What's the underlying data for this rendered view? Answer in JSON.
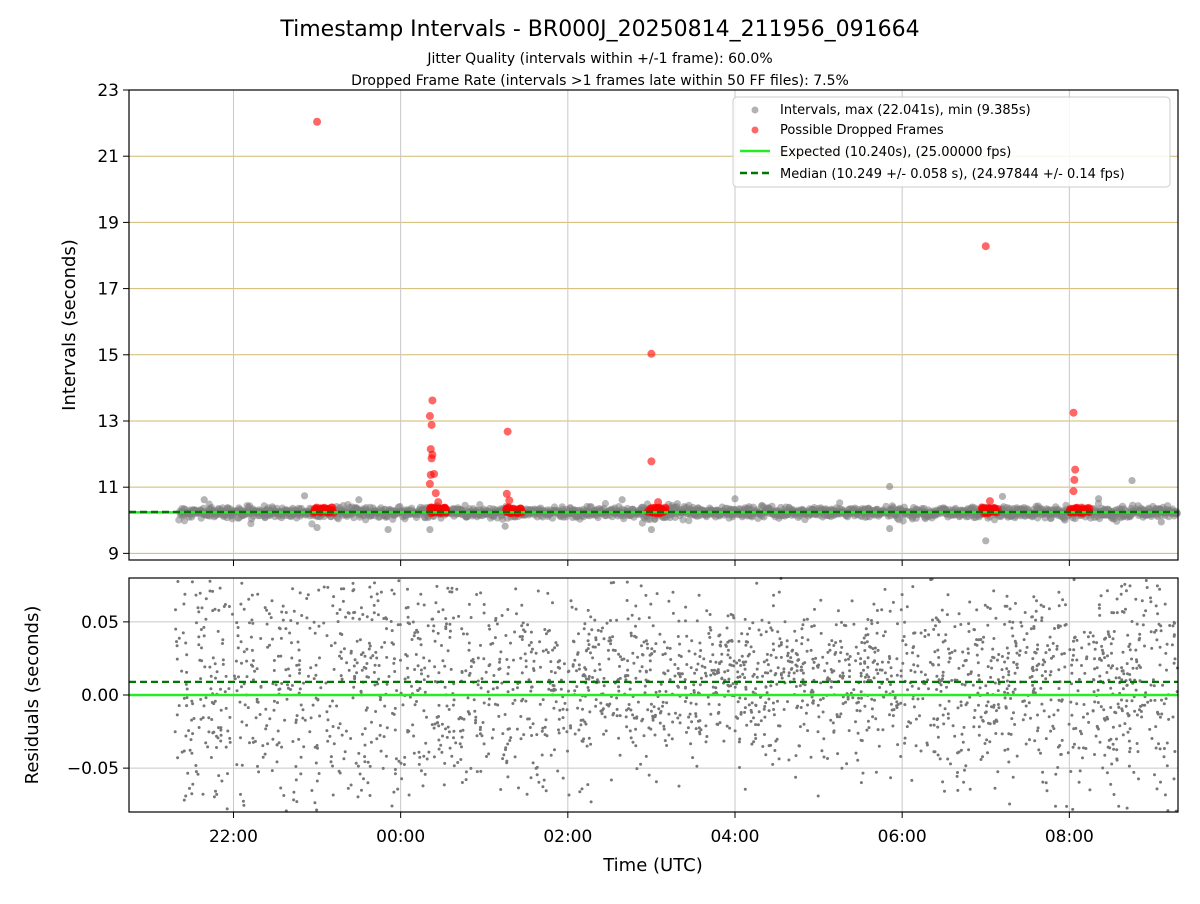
{
  "figure": {
    "title": "Timestamp Intervals - BR000J_20250814_211956_091664",
    "subtitle_1": "Jitter Quality (intervals within +/-1 frame): 60.0%",
    "subtitle_2": "Dropped Frame Rate (intervals >1 frames late within 50 FF files): 7.5%",
    "colors": {
      "intervals": "#808080",
      "dropped": "#ff0000",
      "expected": "#22ee22",
      "median": "#007700",
      "hgrid": "#d2b96e",
      "vgrid": "#c8c8c8"
    }
  },
  "chart_data": [
    {
      "type": "scatter",
      "panel": "top",
      "ylabel": "Intervals (seconds)",
      "xlabel": "",
      "ylim": [
        8.8,
        23.0
      ],
      "yticks": [
        9,
        11,
        13,
        15,
        17,
        19,
        21,
        23
      ],
      "ytick_labels": [
        "9",
        "11",
        "13",
        "15",
        "17",
        "19",
        "21",
        "23"
      ],
      "xticks_hours": [
        22,
        24,
        26,
        28,
        30,
        32
      ],
      "xlim_hours": [
        20.75,
        33.3
      ],
      "grid": true,
      "legend_placement": "top-right",
      "expected_value": 10.24,
      "median_value": 10.249,
      "series": [
        {
          "name": "Intervals, max (22.041s), min (9.385s)",
          "kind": "scatter",
          "color": "#808080",
          "band": {
            "x_start_hour": 21.35,
            "x_end_hour": 33.3,
            "center": 10.24,
            "spread": 0.14
          },
          "outliers": [
            {
              "x": 21.65,
              "y": 10.62
            },
            {
              "x": 22.85,
              "y": 10.74
            },
            {
              "x": 23.0,
              "y": 9.78
            },
            {
              "x": 23.5,
              "y": 10.62
            },
            {
              "x": 23.85,
              "y": 9.72
            },
            {
              "x": 24.35,
              "y": 9.72
            },
            {
              "x": 25.25,
              "y": 9.82
            },
            {
              "x": 26.65,
              "y": 10.62
            },
            {
              "x": 27.0,
              "y": 9.72
            },
            {
              "x": 28.0,
              "y": 10.65
            },
            {
              "x": 29.85,
              "y": 11.02
            },
            {
              "x": 29.85,
              "y": 9.75
            },
            {
              "x": 31.0,
              "y": 9.38
            },
            {
              "x": 31.2,
              "y": 10.72
            },
            {
              "x": 32.35,
              "y": 10.65
            },
            {
              "x": 32.75,
              "y": 11.2
            },
            {
              "x": 33.1,
              "y": 9.95
            }
          ]
        },
        {
          "name": "Possible Dropped Frames",
          "kind": "scatter",
          "color": "#ff0000",
          "points": [
            {
              "x": 23.0,
              "y": 22.041
            },
            {
              "x": 24.38,
              "y": 13.62
            },
            {
              "x": 24.35,
              "y": 13.15
            },
            {
              "x": 24.37,
              "y": 12.88
            },
            {
              "x": 24.36,
              "y": 12.15
            },
            {
              "x": 24.38,
              "y": 11.98
            },
            {
              "x": 24.37,
              "y": 11.87
            },
            {
              "x": 24.4,
              "y": 11.4
            },
            {
              "x": 24.36,
              "y": 11.37
            },
            {
              "x": 24.35,
              "y": 11.1
            },
            {
              "x": 24.42,
              "y": 10.82
            },
            {
              "x": 24.45,
              "y": 10.55
            },
            {
              "x": 25.28,
              "y": 12.68
            },
            {
              "x": 25.27,
              "y": 10.8
            },
            {
              "x": 25.3,
              "y": 10.6
            },
            {
              "x": 27.0,
              "y": 15.03
            },
            {
              "x": 27.0,
              "y": 11.78
            },
            {
              "x": 27.08,
              "y": 10.55
            },
            {
              "x": 31.0,
              "y": 18.28
            },
            {
              "x": 31.05,
              "y": 10.58
            },
            {
              "x": 32.05,
              "y": 13.25
            },
            {
              "x": 32.07,
              "y": 11.53
            },
            {
              "x": 32.06,
              "y": 11.22
            },
            {
              "x": 32.05,
              "y": 10.88
            }
          ],
          "clusters": [
            {
              "x_start_hour": 22.95,
              "x_end_hour": 23.2,
              "y": 10.3
            },
            {
              "x_start_hour": 24.35,
              "x_end_hour": 24.55,
              "y": 10.3
            },
            {
              "x_start_hour": 25.25,
              "x_end_hour": 25.45,
              "y": 10.3
            },
            {
              "x_start_hour": 26.95,
              "x_end_hour": 27.18,
              "y": 10.3
            },
            {
              "x_start_hour": 30.95,
              "x_end_hour": 31.15,
              "y": 10.3
            },
            {
              "x_start_hour": 32.0,
              "x_end_hour": 32.25,
              "y": 10.3
            }
          ]
        },
        {
          "name": "Expected (10.240s), (25.00000 fps)",
          "kind": "line",
          "style": "solid",
          "color": "#22ee22",
          "y": 10.24
        },
        {
          "name": "Median (10.249 +/- 0.058 s), (24.97844 +/- 0.14 fps)",
          "kind": "line",
          "style": "dashed",
          "color": "#007700",
          "y": 10.249
        }
      ]
    },
    {
      "type": "scatter",
      "panel": "bottom",
      "ylabel": "Residuals (seconds)",
      "xlabel": "Time (UTC)",
      "ylim": [
        -0.08,
        0.08
      ],
      "yticks": [
        -0.05,
        0.0,
        0.05
      ],
      "ytick_labels": [
        "−0.05",
        "0.00",
        "0.05"
      ],
      "xticks_hours": [
        22,
        24,
        26,
        28,
        30,
        32
      ],
      "xtick_labels": [
        "22:00",
        "00:00",
        "02:00",
        "04:00",
        "06:00",
        "08:00"
      ],
      "xlim_hours": [
        20.75,
        33.3
      ],
      "grid": true,
      "series": [
        {
          "name": "",
          "kind": "scatter",
          "color": "#777777",
          "band": {
            "x_start_hour": 21.3,
            "x_end_hour": 33.3,
            "center": 0.009,
            "spread": 0.045
          }
        },
        {
          "name": "",
          "kind": "line",
          "style": "solid",
          "color": "#22ee22",
          "y": 0.0
        },
        {
          "name": "",
          "kind": "line",
          "style": "dashed",
          "color": "#007700",
          "y": 0.009
        }
      ]
    }
  ]
}
